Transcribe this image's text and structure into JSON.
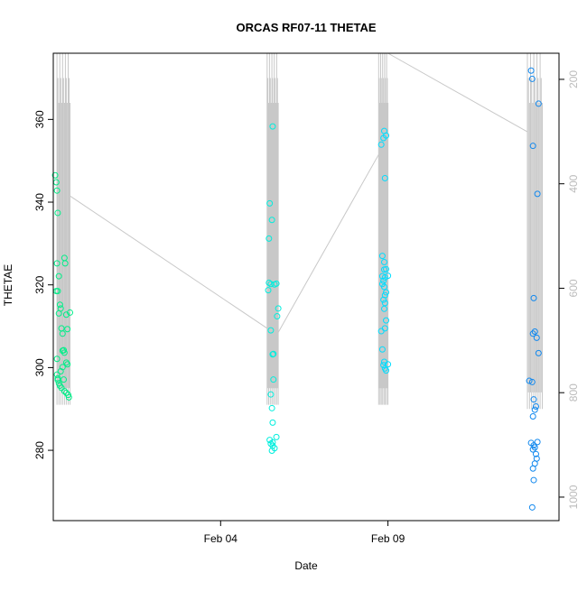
{
  "chart_data": {
    "type": "scatter",
    "title": "ORCAS RF07-11 THETAE",
    "xlabel": "Date",
    "ylabel": "THETAE",
    "x_ticks": [
      "Feb 04",
      "Feb 09"
    ],
    "y_ticks": [
      280,
      300,
      320,
      340,
      360
    ],
    "y2_ticks": [
      200,
      400,
      600,
      800,
      1000
    ],
    "ylim": [
      263,
      376
    ],
    "y2lim": [
      1045,
      150
    ],
    "series_colors": [
      "#00ee88",
      "#00eedd",
      "#00ddff",
      "#1188ee"
    ],
    "background_line_color": "#c8c8c8",
    "series": [
      {
        "x": [
          0.05,
          0.08,
          0.1,
          0.12,
          0.1,
          0.15,
          0.12,
          0.18,
          0.2,
          0.15,
          0.22,
          0.25,
          0.28,
          0.3,
          0.35,
          0.38,
          0.25,
          0.2,
          0.1,
          0.12,
          0.15,
          0.18,
          0.22,
          0.3,
          0.35,
          0.4,
          0.42,
          0.1,
          0.12,
          0.08,
          0.45,
          0.3,
          0.32,
          0.35,
          0.38,
          0.25,
          0.28
        ],
        "y": [
          346.5,
          344.8,
          342.8,
          337.4,
          325.2,
          322.1,
          318.5,
          315.2,
          314.3,
          313.1,
          309.5,
          308.2,
          304.2,
          303.6,
          301.2,
          300.8,
          300.1,
          299.1,
          298.3,
          297.4,
          296.2,
          295.6,
          295.1,
          294.3,
          293.9,
          293.4,
          292.8,
          302.1,
          297.0,
          318.5,
          313.3,
          326.5,
          325.2,
          312.8,
          309.3,
          304.1,
          297.1
        ]
      },
      {
        "x": [
          5.9,
          5.82,
          5.88,
          5.8,
          5.78,
          5.85,
          5.95,
          6.0,
          6.05,
          6.02,
          5.9,
          5.92,
          5.85,
          5.88,
          5.9,
          6.0,
          5.82,
          5.85,
          5.9,
          5.95,
          5.88,
          5.92,
          5.85,
          5.8,
          5.9
        ],
        "y": [
          358.3,
          339.7,
          335.7,
          331.2,
          318.7,
          320.2,
          320.1,
          320.3,
          314.3,
          312.4,
          303.2,
          297.1,
          293.5,
          290.2,
          286.7,
          283.2,
          282.5,
          281.6,
          281.1,
          280.5,
          279.9,
          303.3,
          309.0,
          320.5,
          281.9
        ]
      },
      {
        "x": [
          8.82,
          8.9,
          8.95,
          8.88,
          8.92,
          8.85,
          8.9,
          8.95,
          9.0,
          8.92,
          8.88,
          8.85,
          8.9,
          8.95,
          8.92,
          8.88,
          8.9,
          8.95,
          8.92,
          8.82,
          8.85,
          8.9,
          8.88,
          8.92,
          8.95,
          9.0,
          8.85,
          8.9,
          8.92
        ],
        "y": [
          353.9,
          357.2,
          356.1,
          355.5,
          345.8,
          327.0,
          325.5,
          323.8,
          322.2,
          321.8,
          321.0,
          320.2,
          319.5,
          318.2,
          317.5,
          316.4,
          314.2,
          311.4,
          309.5,
          308.8,
          304.4,
          301.4,
          300.6,
          299.8,
          299.3,
          300.8,
          322.1,
          323.7,
          315.6
        ]
      },
      {
        "x": [
          12.85,
          12.88,
          13.05,
          12.9,
          13.02,
          12.92,
          12.95,
          12.9,
          13.0,
          13.05,
          12.8,
          12.88,
          12.92,
          12.98,
          12.95,
          12.9,
          13.02,
          12.85,
          12.92,
          12.95,
          12.9,
          12.98,
          13.0,
          12.95,
          12.9,
          12.92,
          12.88
        ],
        "y": [
          371.8,
          369.8,
          363.8,
          353.6,
          342.0,
          316.8,
          308.7,
          308.2,
          307.2,
          303.5,
          296.8,
          296.5,
          292.3,
          290.6,
          289.8,
          288.2,
          282.0,
          281.8,
          281.2,
          280.7,
          280.2,
          279.1,
          278.0,
          276.8,
          275.6,
          272.8,
          266.2
        ]
      }
    ]
  }
}
